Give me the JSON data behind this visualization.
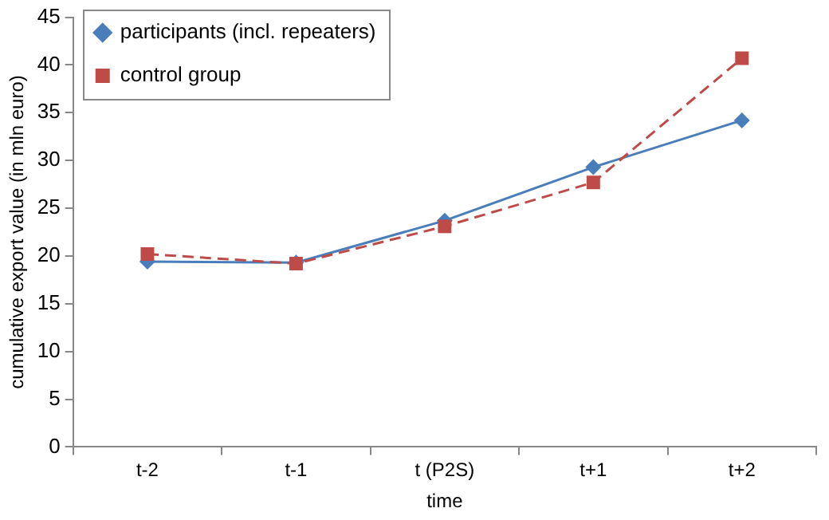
{
  "chart_data": {
    "type": "line",
    "xlabel": "time",
    "ylabel": "cumulative export value (in mln euro)",
    "categories": [
      "t-2",
      "t-1",
      "t (P2S)",
      "t+1",
      "t+2"
    ],
    "series": [
      {
        "name": "participants (incl. repeaters)",
        "color": "#4a7ebb",
        "values": [
          19.4,
          19.3,
          23.7,
          29.3,
          34.2
        ],
        "marker": "diamond",
        "line_style": "solid"
      },
      {
        "name": "control group",
        "color": "#be4b48",
        "values": [
          20.2,
          19.2,
          23.1,
          27.7,
          40.7
        ],
        "marker": "square",
        "line_style": "dashed"
      }
    ],
    "ylim": [
      0,
      45
    ],
    "yticks": [
      0,
      5,
      10,
      15,
      20,
      25,
      30,
      35,
      40,
      45
    ],
    "grid": false,
    "legend": "top left"
  }
}
